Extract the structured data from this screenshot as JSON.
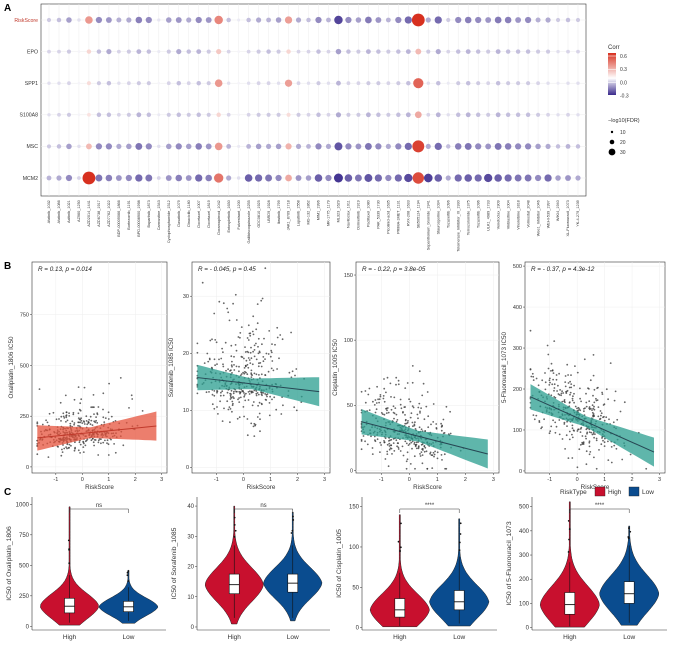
{
  "panels": {
    "A": "A",
    "B": "B",
    "C": "C"
  },
  "chart_data": [
    {
      "panel": "A",
      "type": "heatmap",
      "subtype": "dot-matrix",
      "rows": [
        "RiskScore",
        "EPO",
        "SPP1",
        "S100A8",
        "MSC",
        "MCM2"
      ],
      "highlight_row": "RiskScore",
      "highlight_color": "#c0392b",
      "columns": [
        "Afatinib_1032",
        "Afatinib_1086",
        "Axitinib_1021",
        "AZ960_1250",
        "AZD2014_1441",
        "AZD6738_1917",
        "AZD7762_1022",
        "BDP-00009066_1866",
        "Bortezomib_1191",
        "BPD-00008900_1998",
        "Buparlisib_1873",
        "Carmustine_1543",
        "Cyclophosphamide_1512",
        "Dasatinib_1079",
        "Dinaciclib_1180",
        "Docetaxel_1007",
        "Docetaxel_1819",
        "Doramapimod_1042",
        "Entospletinib_1630",
        "Fulvestrant_1200",
        "Gallibiscoquinazole_2255",
        "GDC0810_1925",
        "I-BRD9_1928",
        "Ibrutinib_1799",
        "JAK1_8709_1718",
        "Lapatinib_1558",
        "MG-132_1862",
        "MIM1_1996",
        "MK-1775_1179",
        "ML323_1629",
        "Navitoclax_1011",
        "Osimertinib_1919",
        "Paclitaxel_1080",
        "PAK_5339_1730",
        "Picolinici-acid_1635",
        "PRIMA-1MET_1131",
        "RVX-208_1633",
        "SB505124_1194",
        "Sepantronium_bromide_1941",
        "Staurosporine_1034",
        "Tozasertib_1096",
        "Telomerase_Inhibitor_IX_1930",
        "Temozolomide_1375",
        "Tozasertib_1096",
        "ULK1_4989_1733",
        "Venetoclax_1909",
        "Vinblastine_1004",
        "Vinorelbine_1818",
        "Vorinostat_2048",
        "Wee1_Inhibitor_1046",
        "WEHI-539_1997",
        "WIKI4_1940",
        "XL-Fluorouracil_1073",
        "YK-4-279_1239"
      ],
      "x_tick_labels": [
        "Afatinib_1032",
        "Afatinib_1086",
        "Axitinib_1021",
        "AZ960_1250",
        "AZD2014_1441",
        "AZD6738_1917",
        "AZD7762_1022",
        "BDP-00009066_1866",
        "Bortezomib_1191",
        "BPD-00008900_1998",
        "Buparlisib_1873",
        "Carmustine_1543",
        "Cyclophosphamide_1512",
        "Dasatinib_1079",
        "Dinaciclib_1180",
        "Docetaxel_1007",
        "Docetaxel_1819",
        "Doramapimod_1042",
        "Entospletinib_1630",
        "Fulvestrant_1200",
        "Gallibiscoquinazole_2255",
        "GDC0810_1925",
        "I-BRD9_1928",
        "Ibrutinib_1799",
        "JAK1_8709_1718",
        "Lapatinib_1558",
        "MG-132_1862",
        "MIM1_1996",
        "MK-1775_1179",
        "ML323_1629",
        "Navitoclax_1011",
        "Osimertinib_1919",
        "Paclitaxel_1080",
        "PAK_5339_1730",
        "Picolinici-acid_1635",
        "PRIMA-1MET_1131",
        "RVX-208_1633",
        "SB505124_1194",
        "Sepantronium_bromide_1941",
        "Staurosporine_1034",
        "Tozasertib_1096",
        "Telomerase_Inhibitor_IX_1930",
        "Temozolomide_1375",
        "Tozasertib_1096",
        "ULK1_4989_1733",
        "Venetoclax_1909",
        "Vinblastine_1004",
        "Vinorelbine_1818",
        "Vorinostat_2048",
        "Wee1_Inhibitor_1046",
        "WEHI-539_1997",
        "WIKI4_1940",
        "XL-Fluorouracil_1073",
        "YK-4-279_1239"
      ],
      "legend_color_title": "Corr",
      "legend_color_ticks": [
        0.6,
        0.3,
        0.0,
        -0.3
      ],
      "legend_colors": {
        "high": "#d7301f",
        "mid": "#ffffff",
        "low": "#3a2a8c"
      },
      "legend_size_title": "−log10(FDR)",
      "legend_size_ticks": [
        10,
        20,
        30
      ],
      "corr": [
        [
          -0.1,
          -0.12,
          -0.18,
          -0.06,
          0.3,
          -0.22,
          -0.2,
          -0.15,
          -0.16,
          -0.24,
          -0.22,
          -0.05,
          -0.18,
          -0.2,
          -0.16,
          -0.22,
          -0.2,
          0.35,
          -0.12,
          -0.04,
          -0.12,
          -0.16,
          -0.14,
          -0.18,
          0.28,
          -0.16,
          -0.12,
          -0.22,
          -0.14,
          -0.35,
          -0.22,
          -0.18,
          -0.25,
          -0.2,
          -0.14,
          -0.22,
          -0.28,
          0.62,
          -0.16,
          -0.28,
          -0.1,
          -0.22,
          -0.24,
          -0.22,
          -0.2,
          -0.25,
          -0.24,
          -0.2,
          -0.22,
          -0.15,
          -0.16,
          -0.1,
          -0.12,
          -0.1
        ],
        [
          -0.08,
          -0.08,
          -0.1,
          -0.02,
          0.12,
          -0.12,
          -0.16,
          -0.08,
          -0.1,
          -0.14,
          -0.12,
          -0.04,
          -0.1,
          -0.16,
          -0.12,
          -0.14,
          -0.1,
          0.16,
          -0.08,
          -0.02,
          -0.08,
          -0.1,
          -0.12,
          -0.1,
          0.12,
          -0.08,
          -0.08,
          -0.12,
          -0.08,
          -0.18,
          -0.12,
          -0.1,
          -0.14,
          -0.12,
          -0.1,
          -0.12,
          -0.14,
          0.2,
          -0.1,
          -0.16,
          -0.08,
          -0.12,
          -0.14,
          -0.12,
          -0.1,
          -0.14,
          -0.12,
          -0.12,
          -0.12,
          -0.1,
          -0.1,
          -0.06,
          -0.08,
          -0.08
        ],
        [
          -0.06,
          -0.06,
          -0.08,
          -0.02,
          0.1,
          -0.1,
          -0.12,
          -0.06,
          -0.08,
          -0.1,
          -0.1,
          -0.02,
          -0.08,
          -0.12,
          -0.08,
          -0.12,
          -0.1,
          0.3,
          -0.06,
          -0.02,
          -0.06,
          -0.08,
          -0.08,
          -0.06,
          0.28,
          -0.08,
          -0.06,
          -0.1,
          -0.06,
          -0.14,
          -0.08,
          -0.08,
          -0.1,
          -0.1,
          -0.08,
          -0.1,
          -0.12,
          0.45,
          -0.06,
          -0.12,
          -0.04,
          -0.1,
          -0.12,
          -0.1,
          -0.08,
          -0.12,
          -0.1,
          -0.1,
          -0.1,
          -0.08,
          -0.06,
          -0.04,
          -0.06,
          -0.06
        ],
        [
          -0.06,
          -0.08,
          -0.1,
          -0.02,
          0.08,
          -0.12,
          -0.12,
          -0.08,
          -0.1,
          -0.14,
          -0.12,
          -0.04,
          -0.1,
          -0.12,
          -0.1,
          -0.12,
          -0.1,
          0.12,
          -0.08,
          -0.02,
          -0.08,
          -0.1,
          -0.1,
          -0.1,
          0.1,
          -0.1,
          -0.08,
          -0.12,
          -0.08,
          -0.16,
          -0.1,
          -0.1,
          -0.14,
          -0.12,
          -0.1,
          -0.12,
          -0.14,
          0.25,
          -0.08,
          -0.14,
          -0.06,
          -0.12,
          -0.14,
          -0.12,
          -0.1,
          -0.14,
          -0.12,
          -0.12,
          -0.12,
          -0.1,
          -0.08,
          -0.06,
          -0.08,
          -0.06
        ],
        [
          -0.1,
          -0.12,
          -0.18,
          -0.06,
          0.2,
          -0.22,
          -0.22,
          -0.16,
          -0.18,
          -0.26,
          -0.22,
          -0.06,
          -0.18,
          -0.22,
          -0.18,
          -0.24,
          -0.2,
          0.3,
          -0.14,
          -0.04,
          -0.14,
          -0.18,
          -0.16,
          -0.18,
          0.22,
          -0.16,
          -0.14,
          -0.22,
          -0.16,
          -0.32,
          -0.22,
          -0.2,
          -0.26,
          -0.22,
          -0.16,
          -0.22,
          -0.28,
          0.55,
          -0.16,
          -0.28,
          -0.12,
          -0.24,
          -0.26,
          -0.22,
          -0.2,
          -0.26,
          -0.24,
          -0.22,
          -0.22,
          -0.18,
          -0.16,
          -0.12,
          -0.14,
          -0.12
        ],
        [
          -0.14,
          -0.16,
          -0.22,
          -0.08,
          0.6,
          -0.26,
          -0.24,
          -0.2,
          -0.22,
          -0.28,
          -0.26,
          -0.08,
          -0.2,
          -0.24,
          -0.2,
          -0.28,
          -0.24,
          0.4,
          -0.16,
          -0.06,
          -0.3,
          -0.28,
          -0.26,
          -0.22,
          0.25,
          -0.2,
          -0.18,
          -0.3,
          -0.22,
          -0.38,
          -0.3,
          -0.26,
          -0.32,
          -0.28,
          -0.22,
          -0.28,
          -0.34,
          0.52,
          -0.36,
          -0.3,
          -0.16,
          -0.28,
          -0.3,
          -0.28,
          -0.34,
          -0.3,
          -0.28,
          -0.26,
          -0.26,
          -0.22,
          -0.28,
          -0.18,
          -0.2,
          -0.16
        ]
      ]
    },
    {
      "panel": "B",
      "type": "scatter",
      "title": "R = 0.13, p = 0.014",
      "xlabel": "RiskScore",
      "ylabel": "Oxaliplatin_1806 IC50",
      "xlim": [
        -1.9,
        3.2
      ],
      "ylim": [
        -30,
        1010
      ],
      "x_ticks": [
        -1,
        0,
        1,
        2,
        3
      ],
      "y_ticks": [
        0,
        250,
        500,
        750
      ],
      "fit": {
        "intercept": 165,
        "slope": 13
      },
      "band_color": "#e5533c",
      "line_color": "#c0392b",
      "seed": 11,
      "n_points": 380,
      "y_center": 165,
      "y_spread": 75
    },
    {
      "panel": "B",
      "type": "scatter",
      "title": "R = - 0.045, p = 0.45",
      "xlabel": "RiskScore",
      "ylabel": "Sorafenib_1085 IC50",
      "xlim": [
        -1.9,
        3.2
      ],
      "ylim": [
        -1,
        36
      ],
      "x_ticks": [
        -1,
        0,
        1,
        2,
        3
      ],
      "y_ticks": [
        0,
        10,
        20,
        30
      ],
      "fit": {
        "intercept": 14.8,
        "slope": -0.55
      },
      "band_color": "#2a9d8f",
      "line_color": "#264653",
      "seed": 23,
      "n_points": 380,
      "y_center": 14.8,
      "y_spread": 6
    },
    {
      "panel": "B",
      "type": "scatter",
      "title": "R = - 0.22, p = 3.8e-05",
      "xlabel": "RiskScore",
      "ylabel": "Cisplatin_1005 IC50",
      "xlim": [
        -1.9,
        3.2
      ],
      "ylim": [
        -2,
        160
      ],
      "x_ticks": [
        -1,
        0,
        1,
        2,
        3
      ],
      "y_ticks": [
        0,
        50,
        100,
        150
      ],
      "fit": {
        "intercept": 28,
        "slope": -5.5
      },
      "band_color": "#2a9d8f",
      "line_color": "#264653",
      "seed": 37,
      "n_points": 380,
      "y_center": 28,
      "y_spread": 20
    },
    {
      "panel": "B",
      "type": "scatter",
      "title": "R = - 0.37, p = 4.3e-12",
      "xlabel": "RiskScore",
      "ylabel": "5-Fluorouracil_1073 IC50",
      "xlim": [
        -1.9,
        3.2
      ],
      "ylim": [
        -5,
        510
      ],
      "x_ticks": [
        -1,
        0,
        1,
        2,
        3
      ],
      "y_ticks": [
        0,
        100,
        200,
        300,
        400,
        500
      ],
      "fit": {
        "intercept": 130,
        "slope": -30
      },
      "band_color": "#2a9d8f",
      "line_color": "#264653",
      "seed": 51,
      "n_points": 380,
      "y_center": 130,
      "y_spread": 75
    },
    {
      "panel": "C",
      "type": "violin",
      "categories": [
        "High",
        "Low"
      ],
      "ylabel": "IC50 of  Oxaliplatin_1806",
      "ylim": [
        -30,
        1060
      ],
      "y_ticks": [
        0,
        250,
        500,
        750,
        1000
      ],
      "significance": "ns",
      "box": [
        {
          "q1": 110,
          "median": 165,
          "q3": 230,
          "lo": 30,
          "hi": 420
        },
        {
          "q1": 120,
          "median": 160,
          "q3": 205,
          "lo": 45,
          "hi": 320
        }
      ],
      "range": [
        [
          10,
          980
        ],
        [
          25,
          460
        ]
      ]
    },
    {
      "panel": "C",
      "type": "violin",
      "categories": [
        "High",
        "Low"
      ],
      "ylabel": "IC50 of  Sorafenib_1085",
      "ylim": [
        -1,
        43
      ],
      "y_ticks": [
        0,
        10,
        20,
        30,
        40
      ],
      "significance": "ns",
      "box": [
        {
          "q1": 11,
          "median": 14,
          "q3": 17.5,
          "lo": 3,
          "hi": 27
        },
        {
          "q1": 11.5,
          "median": 14.5,
          "q3": 17.5,
          "lo": 3,
          "hi": 27
        }
      ],
      "range": [
        [
          1,
          40
        ],
        [
          2,
          38
        ]
      ]
    },
    {
      "panel": "C",
      "type": "violin",
      "categories": [
        "High",
        "Low"
      ],
      "ylabel": "IC50 of  Cisplatin_1005",
      "ylim": [
        -3,
        162
      ],
      "y_ticks": [
        0,
        50,
        100,
        150
      ],
      "significance": "****",
      "box": [
        {
          "q1": 13,
          "median": 22,
          "q3": 36,
          "lo": 2,
          "hi": 68
        },
        {
          "q1": 22,
          "median": 32,
          "q3": 46,
          "lo": 5,
          "hi": 88
        }
      ],
      "range": [
        [
          1,
          140
        ],
        [
          2,
          135
        ]
      ]
    },
    {
      "panel": "C",
      "type": "violin",
      "categories": [
        "High",
        "Low"
      ],
      "ylabel": "IC50 of  5-Fluorouracil_1073",
      "ylim": [
        -10,
        540
      ],
      "y_ticks": [
        0,
        100,
        200,
        300,
        400,
        500
      ],
      "significance": "****",
      "box": [
        {
          "q1": 55,
          "median": 95,
          "q3": 145,
          "lo": 5,
          "hi": 270
        },
        {
          "q1": 100,
          "median": 140,
          "q3": 190,
          "lo": 20,
          "hi": 340
        }
      ],
      "range": [
        [
          2,
          520
        ],
        [
          10,
          420
        ]
      ],
      "legend_title": "RiskType",
      "legend_items": [
        "High",
        "Low"
      ]
    }
  ],
  "colors": {
    "high": "#c8102e",
    "low": "#0a4c8f",
    "text": "#333333",
    "grid": "#ebebeb"
  }
}
